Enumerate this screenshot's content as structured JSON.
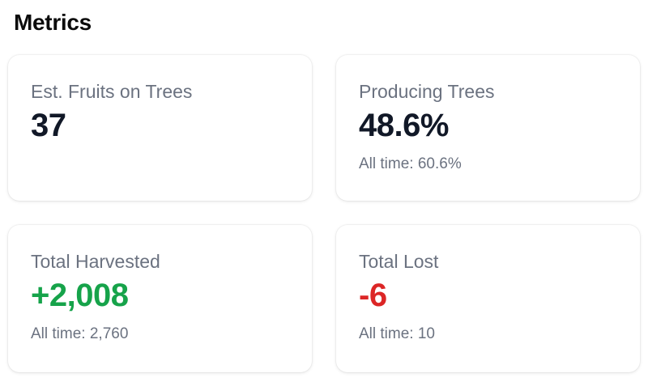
{
  "page": {
    "title": "Metrics"
  },
  "metrics": [
    {
      "label": "Est. Fruits on Trees",
      "value": "37",
      "sub": ""
    },
    {
      "label": "Producing Trees",
      "value": "48.6%",
      "sub": "All time: 60.6%"
    },
    {
      "label": "Total Harvested",
      "value": "+2,008",
      "sub": "All time: 2,760",
      "color": "#16a34a"
    },
    {
      "label": "Total Lost",
      "value": "-6",
      "sub": "All time: 10",
      "color": "#dc2626"
    }
  ]
}
